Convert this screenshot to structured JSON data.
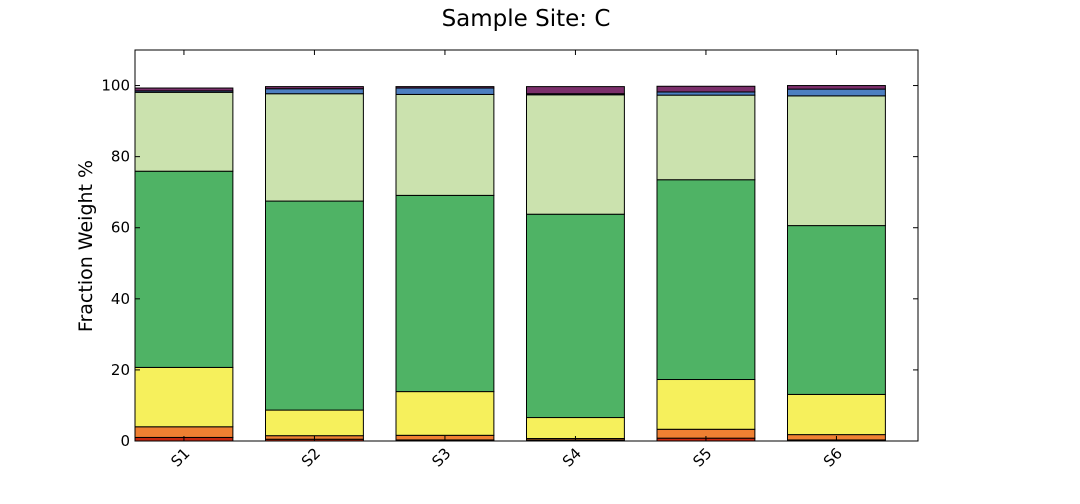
{
  "chart_data": {
    "type": "bar",
    "stacked": true,
    "title": "Sample Site: C",
    "xlabel": "",
    "ylabel": "Fraction Weight %",
    "ylim": [
      0,
      110
    ],
    "yticks": [
      0,
      20,
      40,
      60,
      80,
      100
    ],
    "grid": false,
    "legend": "none",
    "categories": [
      "S1",
      "S2",
      "S3",
      "S4",
      "S5",
      "S6"
    ],
    "series": [
      {
        "color": "#c4270f",
        "values": [
          1.0,
          0.5,
          0.3,
          0.3,
          0.8,
          0.3
        ]
      },
      {
        "color": "#ef8032",
        "values": [
          3.0,
          1.0,
          1.3,
          0.4,
          2.5,
          1.5
        ]
      },
      {
        "color": "#f6f05c",
        "values": [
          16.7,
          7.2,
          12.3,
          5.9,
          14.0,
          11.3
        ]
      },
      {
        "color": "#4fb365",
        "values": [
          55.2,
          58.8,
          55.2,
          57.2,
          56.2,
          47.5
        ]
      },
      {
        "color": "#cbe2ae",
        "values": [
          22.2,
          30.2,
          28.4,
          33.6,
          23.8,
          36.5
        ]
      },
      {
        "color": "#4d7fc1",
        "values": [
          0.4,
          1.4,
          1.8,
          0.3,
          0.9,
          1.9
        ]
      },
      {
        "color": "#7b2f6b",
        "values": [
          0.8,
          0.6,
          0.4,
          2.0,
          1.6,
          1.0
        ]
      }
    ]
  }
}
